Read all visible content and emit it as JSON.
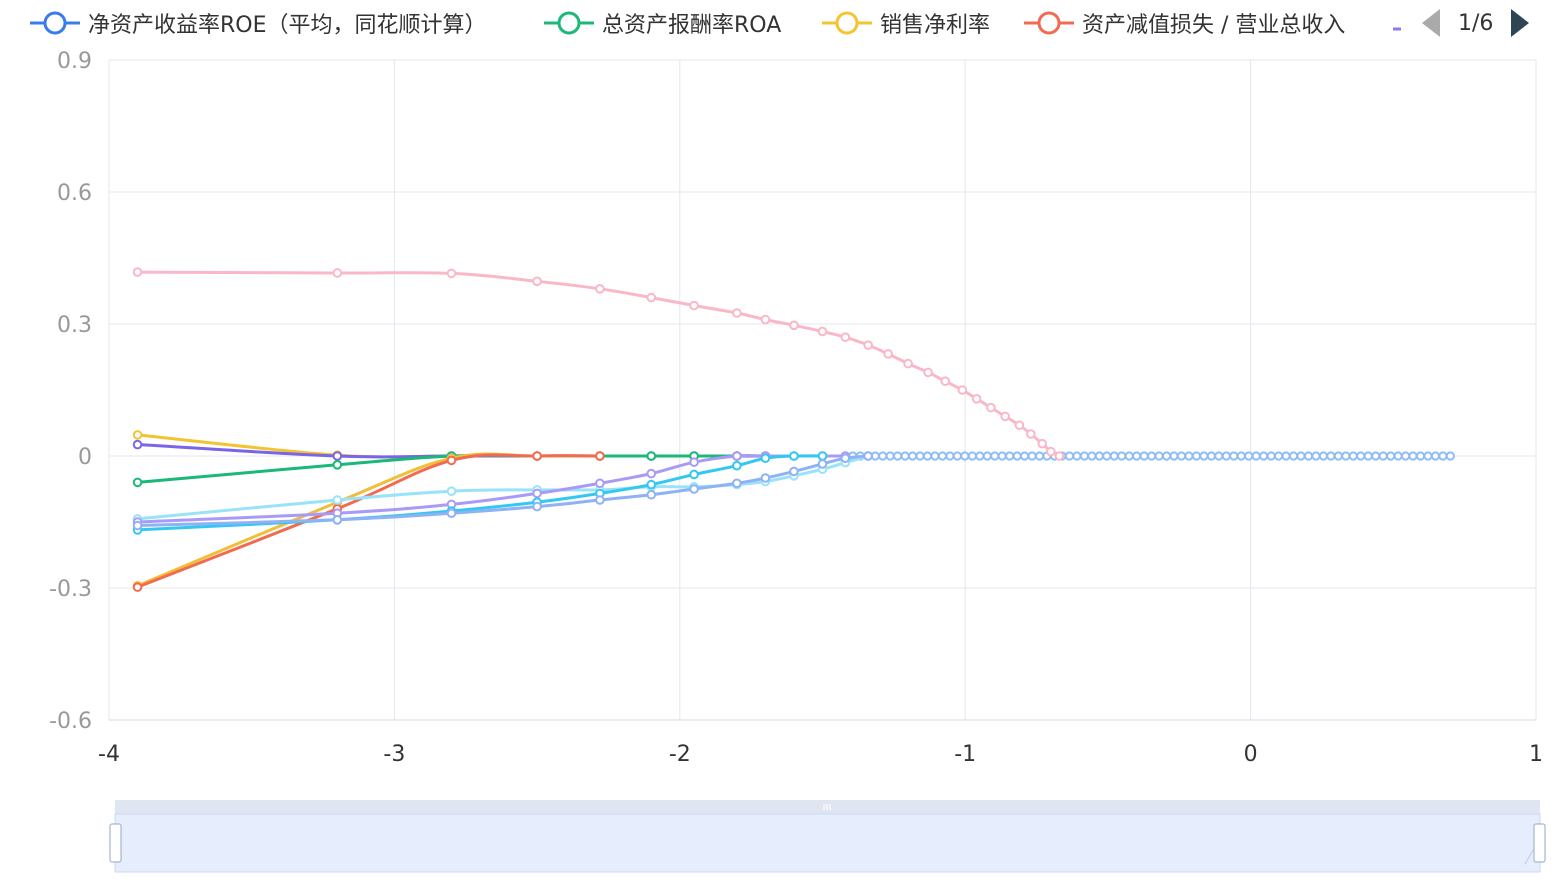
{
  "legend": {
    "items": [
      {
        "label": "净资产收益率ROE（平均，同花顺计算）",
        "color": "#3a7bec",
        "icon": "legend-line-circle-icon"
      },
      {
        "label": "总资产报酬率ROA",
        "color": "#1bb87a",
        "icon": "legend-line-circle-icon"
      },
      {
        "label": "销售净利率",
        "color": "#f4c430",
        "icon": "legend-line-circle-icon"
      },
      {
        "label": "资产减值损失 / 营业总收入",
        "color": "#f26b50",
        "icon": "legend-line-circle-icon"
      }
    ],
    "overflow_color": "#8a7cf0",
    "pager_text": "1/6",
    "prev_icon": "triangle-left-icon",
    "next_icon": "triangle-right-icon"
  },
  "chart_data": {
    "type": "line",
    "xlim": [
      -4,
      1
    ],
    "ylim": [
      -0.6,
      0.9
    ],
    "x_ticks": [
      "-4",
      "-3",
      "-2",
      "-1",
      "0",
      "1"
    ],
    "y_ticks": [
      "0.9",
      "0.6",
      "0.3",
      "0",
      "-0.3",
      "-0.6"
    ],
    "grid": true,
    "smooth": true,
    "series": [
      {
        "color": "#f9b8c8",
        "points": [
          [
            -3.9,
            0.418
          ],
          [
            -3.2,
            0.416
          ],
          [
            -2.8,
            0.415
          ],
          [
            -2.5,
            0.397
          ],
          [
            -2.28,
            0.38
          ],
          [
            -2.1,
            0.36
          ],
          [
            -1.95,
            0.342
          ],
          [
            -1.8,
            0.325
          ],
          [
            -1.7,
            0.31
          ],
          [
            -1.6,
            0.297
          ],
          [
            -1.5,
            0.283
          ],
          [
            -1.42,
            0.27
          ],
          [
            -1.34,
            0.252
          ],
          [
            -1.27,
            0.232
          ],
          [
            -1.2,
            0.21
          ],
          [
            -1.13,
            0.19
          ],
          [
            -1.07,
            0.17
          ],
          [
            -1.01,
            0.15
          ],
          [
            -0.96,
            0.13
          ],
          [
            -0.91,
            0.11
          ],
          [
            -0.86,
            0.09
          ],
          [
            -0.81,
            0.07
          ],
          [
            -0.77,
            0.05
          ],
          [
            -0.73,
            0.028
          ],
          [
            -0.7,
            0.01
          ],
          [
            -0.67,
            0.0
          ]
        ]
      },
      {
        "color": "#f4c430",
        "points": [
          [
            -3.9,
            0.048
          ],
          [
            -3.2,
            0.002
          ],
          [
            -2.8,
            0.0
          ],
          [
            -2.5,
            0.0
          ],
          [
            -2.28,
            0.0
          ],
          [
            -2.1,
            0.0
          ],
          [
            -1.95,
            0.0
          ],
          [
            -1.8,
            0.0
          ],
          [
            -1.7,
            0.0
          ]
        ]
      },
      {
        "color": "#7a64e8",
        "points": [
          [
            -3.9,
            0.026
          ],
          [
            -3.2,
            0.0
          ],
          [
            -2.8,
            0.0
          ],
          [
            -2.5,
            0.0
          ],
          [
            -2.28,
            0.0
          ],
          [
            -2.1,
            0.0
          ],
          [
            -1.95,
            0.0
          ],
          [
            -1.8,
            0.0
          ],
          [
            -1.7,
            0.0
          ]
        ]
      },
      {
        "color": "#1bb87a",
        "points": [
          [
            -3.9,
            -0.06
          ],
          [
            -3.2,
            -0.02
          ],
          [
            -2.8,
            0.0
          ],
          [
            -2.5,
            0.0
          ],
          [
            -2.28,
            0.0
          ],
          [
            -2.1,
            0.0
          ],
          [
            -1.95,
            0.0
          ],
          [
            -1.8,
            0.0
          ]
        ]
      },
      {
        "color": "#f0bf3a",
        "points": [
          [
            -3.9,
            -0.295
          ],
          [
            -3.2,
            -0.105
          ],
          [
            -2.8,
            -0.005
          ],
          [
            -2.5,
            0.0
          ],
          [
            -2.28,
            0.0
          ]
        ]
      },
      {
        "color": "#f26b50",
        "points": [
          [
            -3.9,
            -0.298
          ],
          [
            -3.2,
            -0.12
          ],
          [
            -2.8,
            -0.01
          ],
          [
            -2.5,
            0.0
          ],
          [
            -2.28,
            0.0
          ]
        ]
      },
      {
        "color": "#98e2fa",
        "points": [
          [
            -3.9,
            -0.143
          ],
          [
            -3.2,
            -0.1
          ],
          [
            -2.8,
            -0.08
          ],
          [
            -2.5,
            -0.077
          ],
          [
            -2.28,
            -0.077
          ],
          [
            -2.1,
            -0.07
          ],
          [
            -1.95,
            -0.07
          ],
          [
            -1.8,
            -0.065
          ],
          [
            -1.7,
            -0.058
          ],
          [
            -1.6,
            -0.045
          ],
          [
            -1.5,
            -0.03
          ],
          [
            -1.42,
            -0.015
          ],
          [
            -1.34,
            0.0
          ]
        ]
      },
      {
        "color": "#a99af5",
        "points": [
          [
            -3.9,
            -0.15
          ],
          [
            -3.2,
            -0.13
          ],
          [
            -2.8,
            -0.11
          ],
          [
            -2.5,
            -0.085
          ],
          [
            -2.28,
            -0.062
          ],
          [
            -2.1,
            -0.04
          ],
          [
            -1.95,
            -0.014
          ],
          [
            -1.8,
            0.0
          ],
          [
            -1.7,
            0.0
          ],
          [
            -1.6,
            0.0
          ],
          [
            -1.5,
            0.0
          ],
          [
            -1.42,
            0.0
          ]
        ]
      },
      {
        "color": "#34c8f0",
        "points": [
          [
            -3.9,
            -0.168
          ],
          [
            -3.2,
            -0.145
          ],
          [
            -2.8,
            -0.125
          ],
          [
            -2.5,
            -0.105
          ],
          [
            -2.28,
            -0.085
          ],
          [
            -2.1,
            -0.065
          ],
          [
            -1.95,
            -0.042
          ],
          [
            -1.8,
            -0.022
          ],
          [
            -1.7,
            -0.005
          ],
          [
            -1.6,
            0.0
          ],
          [
            -1.5,
            0.0
          ]
        ]
      },
      {
        "color": "#8fb1f5",
        "points": [
          [
            -3.9,
            -0.158
          ],
          [
            -3.2,
            -0.145
          ],
          [
            -2.8,
            -0.13
          ],
          [
            -2.5,
            -0.115
          ],
          [
            -2.28,
            -0.1
          ],
          [
            -2.1,
            -0.088
          ],
          [
            -1.95,
            -0.075
          ],
          [
            -1.8,
            -0.062
          ],
          [
            -1.7,
            -0.05
          ],
          [
            -1.6,
            -0.035
          ],
          [
            -1.5,
            -0.018
          ],
          [
            -1.42,
            -0.005
          ],
          [
            -1.34,
            0.0
          ]
        ]
      }
    ],
    "zero_dots": {
      "color": "#8fbcf5",
      "x_start": -1.42,
      "x_end": 0.7,
      "count": 82
    }
  },
  "datazoom": {
    "start": 0,
    "end": 100,
    "handle_icon": "drag-handle-icon"
  }
}
